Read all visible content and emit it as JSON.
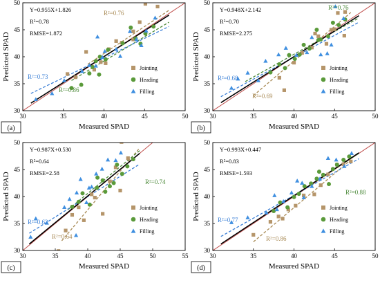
{
  "colors": {
    "jointing": "#b5956a",
    "heading": "#5a9a3a",
    "filling": "#3f8fe0",
    "one_to_one": "#c0504d",
    "fit": "#000000",
    "jointing_line": "#a88a55",
    "heading_line": "#4c8a3a",
    "filling_line": "#3a7fd6"
  },
  "legend_labels": [
    "Jointing",
    "Heading",
    "Filling"
  ],
  "chart_data": [
    {
      "type": "scatter",
      "panel_label": "(a)",
      "xlabel": "Measured SPAD",
      "ylabel": "Predicted SPAD",
      "xlim": [
        30,
        50
      ],
      "ylim": [
        30,
        50
      ],
      "xticks": [
        30,
        35,
        40,
        45,
        50
      ],
      "yticks": [
        30,
        35,
        40,
        45,
        50
      ],
      "stats": [
        "Y=0.955X+1.826",
        "R2=0.78",
        "RMSE=1.872"
      ],
      "legend_position": "bottom-right",
      "fit_line": [
        [
          31,
          31.4
        ],
        [
          48,
          47.7
        ]
      ],
      "series": [
        {
          "name": "Jointing",
          "r2_label": "R2=0.76",
          "line": [
            [
              38,
              38.6
            ],
            [
              48,
              48.6
            ]
          ],
          "points": [
            [
              35.5,
              36.8
            ],
            [
              36.5,
              36.2
            ],
            [
              37.8,
              40.9
            ],
            [
              38.8,
              37.6
            ],
            [
              39.6,
              39.0
            ],
            [
              40.6,
              41.4
            ],
            [
              41.5,
              42.9
            ],
            [
              42.2,
              42.6
            ],
            [
              43.6,
              44.7
            ],
            [
              44.4,
              46.4
            ],
            [
              45.1,
              49.8
            ],
            [
              46.6,
              49.3
            ],
            [
              43.6,
              43.2
            ],
            [
              40.2,
              38.8
            ]
          ]
        },
        {
          "name": "Heading",
          "r2_label": "R2=0.86",
          "line": [
            [
              36,
              35.6
            ],
            [
              48,
              46.4
            ]
          ],
          "points": [
            [
              36.0,
              34.2
            ],
            [
              37.2,
              34.8
            ],
            [
              38.6,
              38.1
            ],
            [
              39.0,
              39.2
            ],
            [
              39.5,
              40.0
            ],
            [
              39.4,
              36.7
            ],
            [
              40.2,
              39.5
            ],
            [
              42.3,
              42.5
            ],
            [
              43.3,
              45.4
            ],
            [
              43.9,
              43.4
            ],
            [
              44.5,
              42.4
            ],
            [
              45.1,
              44.3
            ],
            [
              46.1,
              45.6
            ],
            [
              38.2,
              36.9
            ],
            [
              40.5,
              41.3
            ]
          ]
        },
        {
          "name": "Filling",
          "r2_label": "R2=0.73",
          "line": [
            [
              31,
              33.2
            ],
            [
              48,
              45.6
            ]
          ],
          "points": [
            [
              31.6,
              32.1
            ],
            [
              33.6,
              33.2
            ],
            [
              35.1,
              35.6
            ],
            [
              37.3,
              37.3
            ],
            [
              38.2,
              38.4
            ],
            [
              39.0,
              38.3
            ],
            [
              39.8,
              39.9
            ],
            [
              40.1,
              41.0
            ],
            [
              39.2,
              43.7
            ],
            [
              41.5,
              41.4
            ],
            [
              42.0,
              40.1
            ],
            [
              43.2,
              44.7
            ],
            [
              44.0,
              43.2
            ],
            [
              44.6,
              42.1
            ],
            [
              45.2,
              44.8
            ],
            [
              46.3,
              47.2
            ]
          ]
        }
      ]
    },
    {
      "type": "scatter",
      "panel_label": "(b)",
      "xlabel": "Measured SPAD",
      "ylabel": "Predicted SPAD",
      "xlim": [
        30,
        50
      ],
      "ylim": [
        30,
        50
      ],
      "xticks": [
        30,
        35,
        40,
        45,
        50
      ],
      "yticks": [
        30,
        35,
        40,
        45,
        50
      ],
      "stats": [
        "Y=0.948X+2.142",
        "R2=0.70",
        "RMSE=2.275"
      ],
      "legend_position": "bottom-right",
      "fit_line": [
        [
          31,
          31.5
        ],
        [
          48,
          47.6
        ]
      ],
      "series": [
        {
          "name": "Jointing",
          "r2_label": "R2=0.69",
          "line": [
            [
              35,
              32.8
            ],
            [
              47,
              48.2
            ]
          ],
          "points": [
            [
              38.8,
              33.8
            ],
            [
              38.2,
              36.1
            ],
            [
              40.0,
              38.9
            ],
            [
              41.0,
              40.7
            ],
            [
              42.2,
              41.7
            ],
            [
              43.0,
              43.8
            ],
            [
              44.0,
              42.4
            ],
            [
              45.0,
              45.1
            ],
            [
              46.2,
              43.9
            ],
            [
              45.4,
              48.1
            ],
            [
              46.3,
              48.3
            ],
            [
              44.6,
              45.0
            ],
            [
              42.6,
              44.3
            ]
          ]
        },
        {
          "name": "Heading",
          "r2_label": "R2=0.76",
          "line": [
            [
              34,
              35.4
            ],
            [
              48,
              47.2
            ]
          ],
          "points": [
            [
              37.1,
              37.1
            ],
            [
              38.2,
              38.6
            ],
            [
              38.9,
              37.9
            ],
            [
              39.4,
              40.3
            ],
            [
              40.1,
              39.6
            ],
            [
              40.7,
              40.4
            ],
            [
              41.2,
              42.2
            ],
            [
              41.9,
              41.5
            ],
            [
              42.8,
              45.0
            ],
            [
              43.3,
              43.2
            ],
            [
              44.2,
              43.8
            ],
            [
              44.8,
              46.3
            ],
            [
              45.5,
              45.9
            ],
            [
              46.3,
              46.9
            ],
            [
              43.0,
              43.1
            ]
          ]
        },
        {
          "name": "Filling",
          "r2_label": "R2=0.68",
          "line": [
            [
              31,
              32.6
            ],
            [
              48,
              46.4
            ]
          ],
          "points": [
            [
              32.3,
              34.2
            ],
            [
              33.1,
              35.9
            ],
            [
              34.3,
              37.0
            ],
            [
              35.6,
              35.6
            ],
            [
              36.5,
              39.2
            ],
            [
              38.1,
              40.4
            ],
            [
              39.0,
              41.6
            ],
            [
              40.3,
              40.3
            ],
            [
              41.6,
              40.8
            ],
            [
              42.2,
              43.6
            ],
            [
              43.3,
              40.4
            ],
            [
              44.1,
              40.6
            ],
            [
              45.1,
              49.3
            ],
            [
              46.1,
              47.1
            ],
            [
              44.6,
              42.2
            ]
          ]
        }
      ]
    },
    {
      "type": "scatter",
      "panel_label": "(c)",
      "xlabel": "Measured SPAD",
      "ylabel": "Predicted SPAD",
      "xlim": [
        30,
        55
      ],
      "ylim": [
        30,
        50
      ],
      "xticks": [
        30,
        35,
        40,
        45,
        50,
        55
      ],
      "yticks": [
        30,
        35,
        40,
        45,
        50
      ],
      "stats": [
        "Y=0.987X+0.530",
        "R2=0.64",
        "RMSE=2.58"
      ],
      "legend_position": "bottom-right",
      "fit_line": [
        [
          31,
          31.2
        ],
        [
          48,
          48.0
        ]
      ],
      "series": [
        {
          "name": "Jointing",
          "r2_label": "R2=0.64",
          "line": [
            [
              36,
              31.8
            ],
            [
              48,
              49.0
            ]
          ],
          "points": [
            [
              35.5,
              29.9
            ],
            [
              36.6,
              33.7
            ],
            [
              37.6,
              36.6
            ],
            [
              38.6,
              38.0
            ],
            [
              39.4,
              35.6
            ],
            [
              40.6,
              40.4
            ],
            [
              42.3,
              36.8
            ],
            [
              43.4,
              42.8
            ],
            [
              44.3,
              45.4
            ],
            [
              45.2,
              50.1
            ],
            [
              46.2,
              47.1
            ],
            [
              45.0,
              41.1
            ],
            [
              41.1,
              39.8
            ]
          ]
        },
        {
          "name": "Heading",
          "r2_label": "R2=0.74",
          "line": [
            [
              37,
              37.6
            ],
            [
              48,
              48.5
            ]
          ],
          "points": [
            [
              37.6,
              38.1
            ],
            [
              38.6,
              39.0
            ],
            [
              39.2,
              40.6
            ],
            [
              40.3,
              38.5
            ],
            [
              41.4,
              41.6
            ],
            [
              42.3,
              43.0
            ],
            [
              42.7,
              40.9
            ],
            [
              43.4,
              41.9
            ],
            [
              44.0,
              42.5
            ],
            [
              44.5,
              45.9
            ],
            [
              45.3,
              44.2
            ],
            [
              46.1,
              45.6
            ],
            [
              47.0,
              46.9
            ],
            [
              41.5,
              43.5
            ]
          ]
        },
        {
          "name": "Filling",
          "r2_label": "R2=0.62",
          "line": [
            [
              31,
              33.2
            ],
            [
              48,
              46.0
            ]
          ],
          "points": [
            [
              31.2,
              32.5
            ],
            [
              32.0,
              35.9
            ],
            [
              33.7,
              35.1
            ],
            [
              36.4,
              38.0
            ],
            [
              37.2,
              39.5
            ],
            [
              38.3,
              40.7
            ],
            [
              38.9,
              43.2
            ],
            [
              39.8,
              38.9
            ],
            [
              40.6,
              41.8
            ],
            [
              41.3,
              44.2
            ],
            [
              42.2,
              45.1
            ],
            [
              43.1,
              46.8
            ],
            [
              44.3,
              46.7
            ],
            [
              45.1,
              48.1
            ],
            [
              38.2,
              32.8
            ],
            [
              40.2,
              41.6
            ]
          ]
        }
      ]
    },
    {
      "type": "scatter",
      "panel_label": "(d)",
      "xlabel": "Measured SPAD",
      "ylabel": "Predicted SPAD",
      "xlim": [
        30,
        50
      ],
      "ylim": [
        30,
        50
      ],
      "xticks": [
        30,
        35,
        40,
        45,
        50
      ],
      "yticks": [
        30,
        35,
        40,
        45,
        50
      ],
      "stats": [
        "Y=0.993X+0.447",
        "R2=0.83",
        "RMSE=1.593"
      ],
      "legend_position": "bottom-right",
      "fit_line": [
        [
          31,
          31.2
        ],
        [
          48,
          48.1
        ]
      ],
      "series": [
        {
          "name": "Jointing",
          "r2_label": "R2=0.86",
          "line": [
            [
              35,
              31.6
            ],
            [
              47,
              46.8
            ]
          ],
          "points": [
            [
              35.0,
              32.9
            ],
            [
              37.1,
              35.3
            ],
            [
              38.1,
              36.3
            ],
            [
              38.6,
              35.9
            ],
            [
              39.3,
              37.6
            ],
            [
              40.2,
              38.3
            ],
            [
              41.2,
              40.2
            ],
            [
              42.5,
              40.4
            ],
            [
              43.3,
              42.1
            ],
            [
              44.2,
              44.1
            ],
            [
              45.3,
              45.9
            ],
            [
              46.1,
              46.0
            ],
            [
              47.0,
              46.5
            ]
          ]
        },
        {
          "name": "Heading",
          "r2_label": "R2=0.88",
          "line": [
            [
              37,
              37.2
            ],
            [
              48,
              48.0
            ]
          ],
          "points": [
            [
              37.5,
              37.3
            ],
            [
              38.3,
              38.9
            ],
            [
              39.2,
              38.0
            ],
            [
              40.0,
              39.9
            ],
            [
              40.6,
              40.5
            ],
            [
              41.3,
              41.9
            ],
            [
              42.1,
              42.4
            ],
            [
              42.8,
              43.3
            ],
            [
              43.6,
              44.0
            ],
            [
              44.3,
              42.3
            ],
            [
              44.8,
              45.1
            ],
            [
              45.3,
              45.9
            ],
            [
              46.1,
              46.8
            ],
            [
              46.8,
              47.4
            ],
            [
              43.1,
              44.6
            ]
          ]
        },
        {
          "name": "Filling",
          "r2_label": "R2=0.77",
          "line": [
            [
              31,
              32.6
            ],
            [
              48,
              47.0
            ]
          ],
          "points": [
            [
              32.3,
              35.2
            ],
            [
              34.3,
              36.1
            ],
            [
              36.6,
              37.0
            ],
            [
              37.6,
              40.2
            ],
            [
              38.7,
              39.1
            ],
            [
              39.7,
              40.7
            ],
            [
              40.4,
              42.9
            ],
            [
              41.2,
              39.8
            ],
            [
              42.2,
              41.9
            ],
            [
              43.2,
              43.3
            ],
            [
              44.2,
              47.1
            ],
            [
              45.2,
              46.8
            ],
            [
              46.2,
              45.6
            ],
            [
              47.1,
              48.0
            ],
            [
              37.9,
              37.6
            ],
            [
              41.0,
              42.5
            ]
          ]
        }
      ]
    }
  ]
}
